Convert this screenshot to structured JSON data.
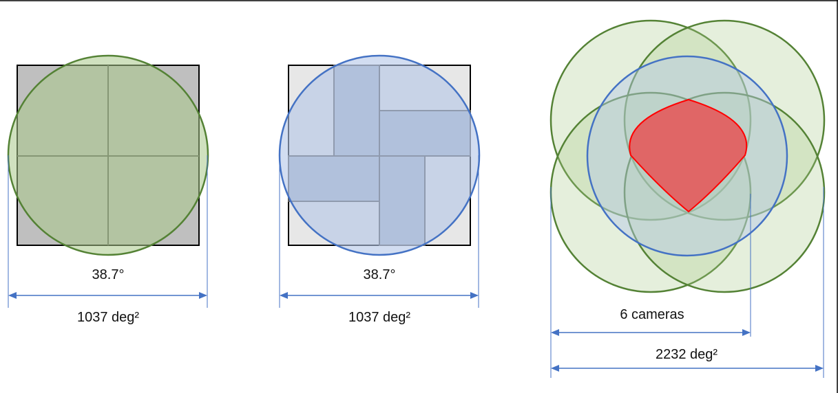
{
  "colors": {
    "frame": "#000000",
    "green_stroke": "#548235",
    "green_fill": "#a9c98a",
    "blue_stroke": "#4472c4",
    "blue_fill": "#b4c7e7",
    "dark_gray": "#bfbfbf",
    "light_gray": "#e7e7e7",
    "chip": "#adb9ca",
    "chip_line": "#595959",
    "red": "#e06666",
    "red_stroke": "#ff0000",
    "arrow": "#4472c4"
  },
  "panels": [
    {
      "angle_label": "38.7°",
      "area_label": "1037 deg²"
    },
    {
      "angle_label": "38.7°",
      "area_label": "1037 deg²"
    },
    {
      "count_label": "6 cameras",
      "area_label": "2232 deg²"
    }
  ]
}
